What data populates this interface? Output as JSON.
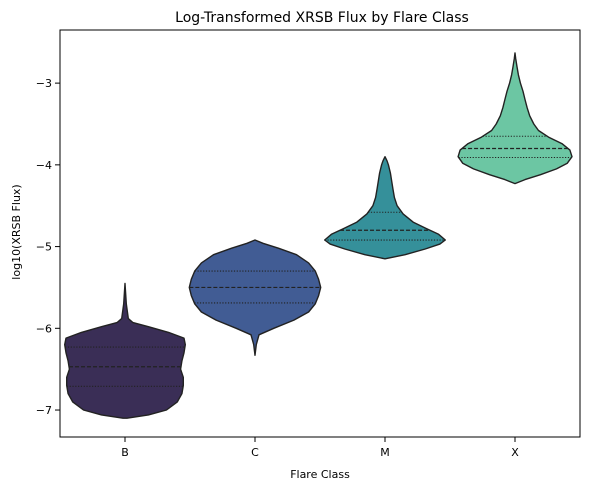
{
  "chart_data": {
    "type": "violin",
    "title": "Log-Transformed XRSB Flux by Flare Class",
    "xlabel": "Flare Class",
    "ylabel": "log10(XRSB Flux)",
    "categories": [
      "B",
      "C",
      "M",
      "X"
    ],
    "ylim": [
      -7.33,
      -2.35
    ],
    "yticks": [
      -7,
      -6,
      -5,
      -4,
      -3
    ],
    "ytick_labels": [
      "−7",
      "−6",
      "−5",
      "−4",
      "−3"
    ],
    "grid": false,
    "legend": "none",
    "colors": [
      "#3a2e56",
      "#415c94",
      "#35909a",
      "#6cc6a3"
    ],
    "series": [
      {
        "category": "B",
        "min": -7.1,
        "max": -5.45,
        "q1": -6.71,
        "median": -6.47,
        "q3": -6.23,
        "profile": [
          [
            -7.1,
            0.03
          ],
          [
            -7.06,
            0.35
          ],
          [
            -7.0,
            0.62
          ],
          [
            -6.9,
            0.78
          ],
          [
            -6.8,
            0.85
          ],
          [
            -6.7,
            0.87
          ],
          [
            -6.6,
            0.87
          ],
          [
            -6.5,
            0.83
          ],
          [
            -6.4,
            0.85
          ],
          [
            -6.3,
            0.88
          ],
          [
            -6.2,
            0.9
          ],
          [
            -6.12,
            0.88
          ],
          [
            -6.05,
            0.65
          ],
          [
            -5.98,
            0.35
          ],
          [
            -5.93,
            0.12
          ],
          [
            -5.88,
            0.05
          ],
          [
            -5.7,
            0.02
          ],
          [
            -5.45,
            0.0
          ]
        ]
      },
      {
        "category": "C",
        "min": -6.33,
        "max": -4.92,
        "q1": -5.69,
        "median": -5.5,
        "q3": -5.3,
        "profile": [
          [
            -6.33,
            0.0
          ],
          [
            -6.2,
            0.02
          ],
          [
            -6.08,
            0.06
          ],
          [
            -6.0,
            0.28
          ],
          [
            -5.9,
            0.58
          ],
          [
            -5.8,
            0.8
          ],
          [
            -5.7,
            0.9
          ],
          [
            -5.6,
            0.95
          ],
          [
            -5.5,
            0.98
          ],
          [
            -5.4,
            0.95
          ],
          [
            -5.3,
            0.9
          ],
          [
            -5.2,
            0.8
          ],
          [
            -5.1,
            0.62
          ],
          [
            -5.02,
            0.35
          ],
          [
            -4.96,
            0.12
          ],
          [
            -4.92,
            0.0
          ]
        ]
      },
      {
        "category": "M",
        "min": -5.15,
        "max": -3.9,
        "q1": -4.92,
        "median": -4.8,
        "q3": -4.58,
        "profile": [
          [
            -5.15,
            0.0
          ],
          [
            -5.1,
            0.3
          ],
          [
            -5.03,
            0.6
          ],
          [
            -4.97,
            0.82
          ],
          [
            -4.92,
            0.9
          ],
          [
            -4.85,
            0.8
          ],
          [
            -4.78,
            0.62
          ],
          [
            -4.7,
            0.42
          ],
          [
            -4.6,
            0.27
          ],
          [
            -4.5,
            0.18
          ],
          [
            -4.4,
            0.14
          ],
          [
            -4.3,
            0.12
          ],
          [
            -4.2,
            0.1
          ],
          [
            -4.1,
            0.08
          ],
          [
            -4.0,
            0.05
          ],
          [
            -3.95,
            0.03
          ],
          [
            -3.9,
            0.0
          ]
        ]
      },
      {
        "category": "X",
        "min": -4.23,
        "max": -2.63,
        "q1": -3.91,
        "median": -3.8,
        "q3": -3.65,
        "profile": [
          [
            -4.23,
            0.0
          ],
          [
            -4.18,
            0.15
          ],
          [
            -4.12,
            0.38
          ],
          [
            -4.05,
            0.62
          ],
          [
            -3.98,
            0.78
          ],
          [
            -3.9,
            0.85
          ],
          [
            -3.82,
            0.82
          ],
          [
            -3.74,
            0.7
          ],
          [
            -3.66,
            0.5
          ],
          [
            -3.58,
            0.35
          ],
          [
            -3.5,
            0.28
          ],
          [
            -3.4,
            0.22
          ],
          [
            -3.3,
            0.18
          ],
          [
            -3.2,
            0.15
          ],
          [
            -3.1,
            0.12
          ],
          [
            -3.0,
            0.08
          ],
          [
            -2.9,
            0.05
          ],
          [
            -2.8,
            0.03
          ],
          [
            -2.7,
            0.01
          ],
          [
            -2.63,
            0.0
          ]
        ]
      }
    ]
  }
}
